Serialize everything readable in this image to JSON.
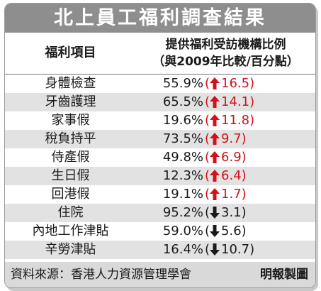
{
  "title": "北上員工福利調查結果",
  "header": {
    "col_item": "福利項目",
    "col_ratio_line1": "提供福利受訪機構比例",
    "col_ratio_line2": "（與2009年比較/百分點）"
  },
  "rows": [
    {
      "item": "身體檢查",
      "percent": "55.9%",
      "open": "(",
      "change": "16.5",
      "close": ")",
      "direction": "up"
    },
    {
      "item": "牙齒護理",
      "percent": "65.5%",
      "open": "(",
      "change": "14.1",
      "close": ")",
      "direction": "up"
    },
    {
      "item": "家事假",
      "percent": "19.6%",
      "open": "(",
      "change": "11.8",
      "close": ")",
      "direction": "up"
    },
    {
      "item": "稅負持平",
      "percent": "73.5%",
      "open": "(",
      "change": "9.7",
      "close": ")",
      "direction": "up"
    },
    {
      "item": "侍產假",
      "percent": "49.8%",
      "open": "(",
      "change": "6.9",
      "close": ")",
      "direction": "up"
    },
    {
      "item": "生日假",
      "percent": "12.3%",
      "open": "(",
      "change": "6.4",
      "close": ")",
      "direction": "up"
    },
    {
      "item": "回港假",
      "percent": "19.1%",
      "open": "(",
      "change": "1.7",
      "close": ")",
      "direction": "up"
    },
    {
      "item": "住院",
      "percent": "95.2%",
      "open": "(",
      "change": "3.1",
      "close": ")",
      "direction": "down"
    },
    {
      "item": "內地工作津貼",
      "percent": "59.0%",
      "open": "(",
      "change": "5.6",
      "close": ")",
      "direction": "down"
    },
    {
      "item": "辛勞津貼",
      "percent": "16.4%",
      "open": "(",
      "change": "10.7",
      "close": ")",
      "direction": "down"
    }
  ],
  "footer": {
    "source": "資料來源：香港人力資源管理學會",
    "credit": "明報製圖"
  },
  "colors": {
    "up": "#d0121b",
    "down": "#1a1a1a",
    "title_bg": "#8e8e8e",
    "alt_row": "#e2e2e2",
    "footer_bg": "#d9d9d9"
  },
  "icons": {
    "up": "up-arrow-icon",
    "down": "down-arrow-icon"
  }
}
